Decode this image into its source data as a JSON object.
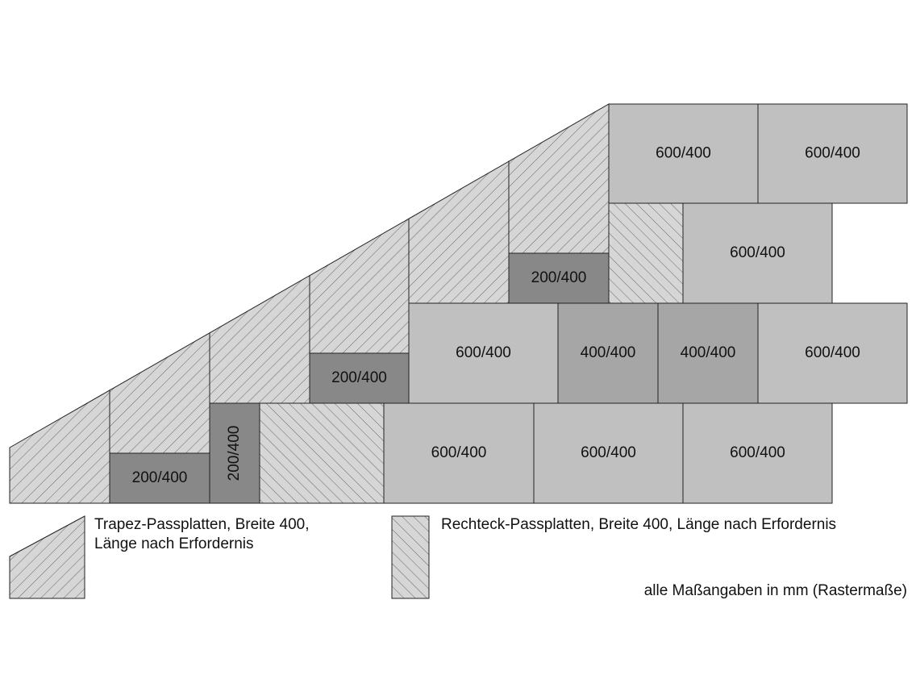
{
  "tiles": [
    {
      "label": "600/400"
    },
    {
      "label": "600/400"
    },
    {
      "label": "600/400"
    },
    {
      "label": "200/400"
    },
    {
      "label": "600/400"
    },
    {
      "label": "400/400"
    },
    {
      "label": "400/400"
    },
    {
      "label": "600/400"
    },
    {
      "label": "200/400"
    },
    {
      "label": "200/400"
    },
    {
      "label": "200/400"
    },
    {
      "label": "600/400"
    },
    {
      "label": "600/400"
    },
    {
      "label": "600/400"
    }
  ],
  "legend": {
    "trapezoid": [
      "Trapez-Passplatten, Breite 400,",
      "Länge nach Erfordernis"
    ],
    "rectangle": [
      "Rechteck-Passplatten, Breite 400, Länge nach Erfordernis"
    ]
  },
  "note": "alle Maßangaben in mm (Rastermaße)"
}
